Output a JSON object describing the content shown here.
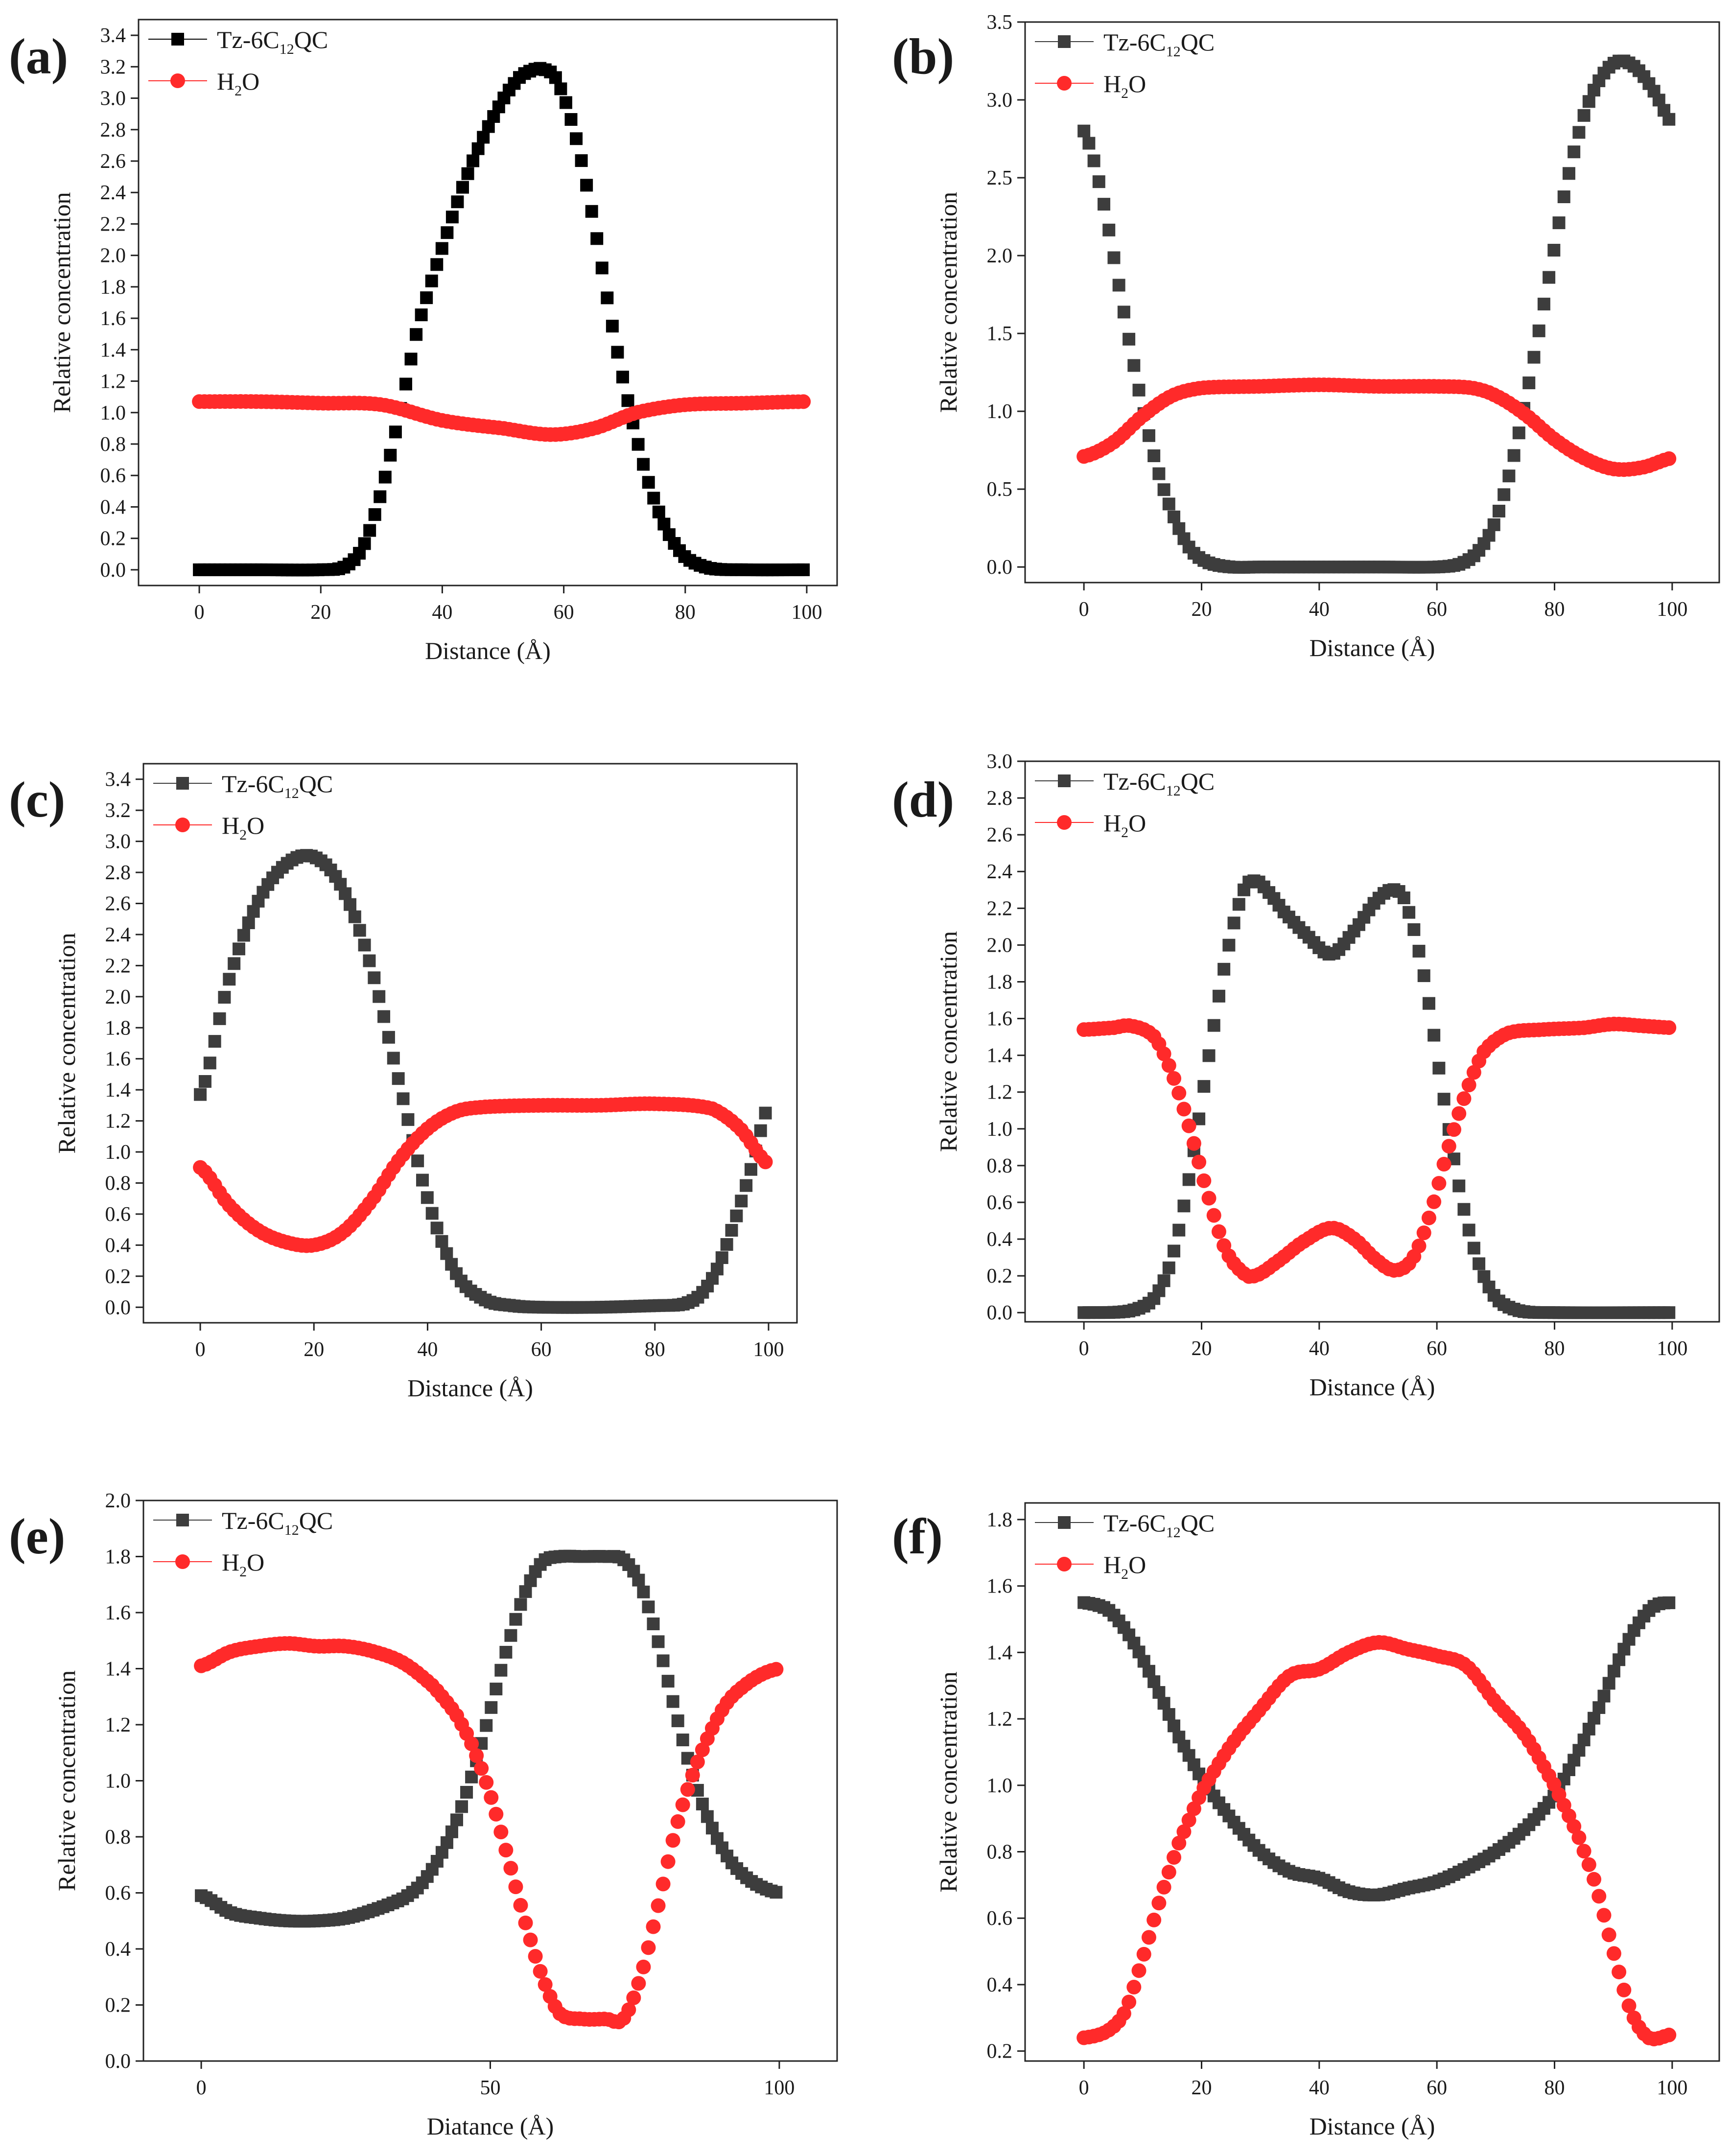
{
  "figure": {
    "series_colors": {
      "Tz-6C12QC": "#3d3d3d",
      "H2O": "#ff2a2a"
    },
    "series_colors_panel_a": {
      "Tz-6C12QC": "#000000",
      "H2O": "#ff2a2a"
    }
  },
  "chart_data": [
    {
      "panel": "(a)",
      "type": "scatter",
      "xlabel": "Distance (Å)",
      "ylabel": "Relative concentration",
      "xlim": [
        -10,
        105
      ],
      "ylim": [
        -0.1,
        3.5
      ],
      "xticks": [
        0,
        20,
        40,
        60,
        80,
        100
      ],
      "yticks": [
        0.0,
        0.2,
        0.4,
        0.6,
        0.8,
        1.0,
        1.2,
        1.4,
        1.6,
        1.8,
        2.0,
        2.2,
        2.4,
        2.6,
        2.8,
        3.0,
        3.2,
        3.4
      ],
      "ytick_decimals": 1,
      "legend_position": "top-left",
      "series": [
        {
          "name": "Tz-6C12QC",
          "marker": "square",
          "x": [
            0,
            10,
            20,
            24,
            27,
            30,
            33,
            36,
            40,
            44,
            48,
            52,
            55,
            57,
            59,
            62,
            65,
            68,
            71,
            74,
            77,
            80,
            84,
            90,
            100
          ],
          "y": [
            0.0,
            0.0,
            0.0,
            0.02,
            0.15,
            0.5,
            1.0,
            1.55,
            2.05,
            2.5,
            2.85,
            3.1,
            3.18,
            3.18,
            3.1,
            2.75,
            2.2,
            1.55,
            1.0,
            0.55,
            0.25,
            0.08,
            0.01,
            0.0,
            0.0
          ]
        },
        {
          "name": "H2O",
          "marker": "circle",
          "x": [
            0,
            10,
            20,
            30,
            40,
            50,
            58,
            65,
            72,
            80,
            90,
            100
          ],
          "y": [
            1.07,
            1.07,
            1.06,
            1.05,
            0.95,
            0.9,
            0.86,
            0.9,
            1.0,
            1.05,
            1.06,
            1.07
          ]
        }
      ],
      "legend": [
        {
          "series": "Tz-6C12QC",
          "base": "Tz-6C",
          "sub": "12",
          "tail": "QC"
        },
        {
          "series": "H2O",
          "base": "H",
          "sub": "2",
          "tail": "O"
        }
      ]
    },
    {
      "panel": "(b)",
      "type": "scatter",
      "xlabel": "Distance (Å)",
      "ylabel": "Relative concentration",
      "xlim": [
        -10,
        108
      ],
      "ylim": [
        -0.1,
        3.5
      ],
      "xticks": [
        0,
        20,
        40,
        60,
        80,
        100
      ],
      "yticks": [
        0.0,
        0.5,
        1.0,
        1.5,
        2.0,
        2.5,
        3.0,
        3.5
      ],
      "ytick_decimals": 1,
      "legend_position": "top-left",
      "series": [
        {
          "name": "Tz-6C12QC",
          "marker": "square",
          "x": [
            0,
            3,
            6,
            9,
            12,
            15,
            18,
            21,
            25,
            30,
            40,
            50,
            60,
            64,
            67,
            70,
            73,
            76,
            79,
            82,
            85,
            88,
            91,
            94,
            97,
            100
          ],
          "y": [
            2.8,
            2.4,
            1.8,
            1.2,
            0.7,
            0.35,
            0.12,
            0.03,
            0.0,
            0.0,
            0.0,
            0.0,
            0.0,
            0.02,
            0.1,
            0.3,
            0.7,
            1.25,
            1.85,
            2.45,
            2.9,
            3.15,
            3.25,
            3.2,
            3.05,
            2.85
          ]
        },
        {
          "name": "H2O",
          "marker": "circle",
          "x": [
            0,
            5,
            10,
            15,
            20,
            30,
            40,
            50,
            60,
            66,
            70,
            75,
            80,
            85,
            90,
            95,
            100
          ],
          "y": [
            0.71,
            0.8,
            0.97,
            1.1,
            1.15,
            1.16,
            1.17,
            1.16,
            1.16,
            1.15,
            1.1,
            0.98,
            0.82,
            0.7,
            0.63,
            0.64,
            0.7
          ]
        }
      ],
      "legend": [
        {
          "series": "Tz-6C12QC",
          "base": "Tz-6C",
          "sub": "12",
          "tail": "QC"
        },
        {
          "series": "H2O",
          "base": "H",
          "sub": "2",
          "tail": "O"
        }
      ]
    },
    {
      "panel": "(c)",
      "type": "scatter",
      "xlabel": "Distance (Å)",
      "ylabel": "Relative concentration",
      "xlim": [
        -10,
        105
      ],
      "ylim": [
        -0.1,
        3.5
      ],
      "xticks": [
        0,
        20,
        40,
        60,
        80,
        100
      ],
      "yticks": [
        0.0,
        0.2,
        0.4,
        0.6,
        0.8,
        1.0,
        1.2,
        1.4,
        1.6,
        1.8,
        2.0,
        2.2,
        2.4,
        2.6,
        2.8,
        3.0,
        3.2,
        3.4
      ],
      "ytick_decimals": 1,
      "legend_position": "top-left",
      "series": [
        {
          "name": "Tz-6C12QC",
          "marker": "square",
          "x": [
            0,
            5,
            10,
            15,
            20,
            25,
            30,
            35,
            40,
            45,
            50,
            55,
            60,
            70,
            80,
            85,
            88,
            91,
            94,
            97,
            100
          ],
          "y": [
            1.37,
            2.1,
            2.6,
            2.85,
            2.9,
            2.7,
            2.2,
            1.45,
            0.7,
            0.22,
            0.05,
            0.01,
            0.0,
            0.0,
            0.01,
            0.02,
            0.08,
            0.25,
            0.55,
            0.9,
            1.3
          ]
        },
        {
          "name": "H2O",
          "marker": "circle",
          "x": [
            0,
            5,
            10,
            15,
            20,
            25,
            30,
            35,
            40,
            45,
            50,
            60,
            70,
            80,
            90,
            95,
            100
          ],
          "y": [
            0.9,
            0.66,
            0.5,
            0.42,
            0.4,
            0.48,
            0.68,
            0.95,
            1.15,
            1.26,
            1.29,
            1.3,
            1.3,
            1.31,
            1.28,
            1.15,
            0.92
          ]
        }
      ],
      "legend": [
        {
          "series": "Tz-6C12QC",
          "base": "Tz-6C",
          "sub": "12",
          "tail": "QC"
        },
        {
          "series": "H2O",
          "base": "H",
          "sub": "2",
          "tail": "O"
        }
      ]
    },
    {
      "panel": "(d)",
      "type": "scatter",
      "xlabel": "Distance (Å)",
      "ylabel": "Relative concentration",
      "xlim": [
        -10,
        108
      ],
      "ylim": [
        -0.05,
        3.0
      ],
      "xticks": [
        0,
        20,
        40,
        60,
        80,
        100
      ],
      "yticks": [
        0.0,
        0.2,
        0.4,
        0.6,
        0.8,
        1.0,
        1.2,
        1.4,
        1.6,
        1.8,
        2.0,
        2.2,
        2.4,
        2.6,
        2.8,
        3.0
      ],
      "ytick_decimals": 1,
      "legend_position": "top-left",
      "series": [
        {
          "name": "Tz-6C12QC",
          "marker": "square",
          "x": [
            0,
            8,
            12,
            15,
            18,
            21,
            24,
            27,
            29,
            31,
            34,
            38,
            42,
            46,
            50,
            53,
            55,
            58,
            61,
            64,
            67,
            70,
            74,
            80,
            100
          ],
          "y": [
            0.0,
            0.01,
            0.08,
            0.3,
            0.75,
            1.35,
            1.9,
            2.28,
            2.35,
            2.3,
            2.18,
            2.05,
            1.95,
            2.08,
            2.25,
            2.3,
            2.2,
            1.8,
            1.2,
            0.65,
            0.28,
            0.08,
            0.01,
            0.0,
            0.0
          ]
        },
        {
          "name": "H2O",
          "marker": "circle",
          "x": [
            0,
            5,
            8,
            12,
            15,
            18,
            21,
            24,
            27,
            29,
            33,
            37,
            42,
            46,
            50,
            53,
            56,
            59,
            62,
            65,
            68,
            72,
            78,
            85,
            90,
            95,
            100
          ],
          "y": [
            1.54,
            1.55,
            1.56,
            1.5,
            1.3,
            1.0,
            0.65,
            0.35,
            0.22,
            0.2,
            0.28,
            0.38,
            0.46,
            0.4,
            0.28,
            0.23,
            0.3,
            0.55,
            0.9,
            1.2,
            1.42,
            1.52,
            1.54,
            1.55,
            1.57,
            1.56,
            1.55
          ]
        }
      ],
      "legend": [
        {
          "series": "Tz-6C12QC",
          "base": "Tz-6C",
          "sub": "12",
          "tail": "QC"
        },
        {
          "series": "H2O",
          "base": "H",
          "sub": "2",
          "tail": "O"
        }
      ]
    },
    {
      "panel": "(e)",
      "type": "scatter",
      "xlabel": "Diatance (Å)",
      "ylabel": "Relative concentration",
      "xlim": [
        -10,
        110
      ],
      "ylim": [
        0.0,
        2.0
      ],
      "xticks": [
        0,
        50,
        100
      ],
      "yticks": [
        0.0,
        0.2,
        0.4,
        0.6,
        0.8,
        1.0,
        1.2,
        1.4,
        1.6,
        1.8,
        2.0
      ],
      "ytick_decimals": 1,
      "legend_position": "top-left",
      "series": [
        {
          "name": "Tz-6C12QC",
          "marker": "square",
          "x": [
            0,
            5,
            10,
            15,
            20,
            25,
            30,
            35,
            38,
            41,
            44,
            47,
            50,
            53,
            56,
            59,
            62,
            66,
            70,
            73,
            76,
            79,
            82,
            85,
            88,
            91,
            94,
            97,
            100
          ],
          "y": [
            0.59,
            0.53,
            0.51,
            0.5,
            0.5,
            0.51,
            0.54,
            0.58,
            0.63,
            0.72,
            0.85,
            1.03,
            1.25,
            1.48,
            1.67,
            1.78,
            1.8,
            1.8,
            1.8,
            1.79,
            1.7,
            1.5,
            1.25,
            1.02,
            0.85,
            0.73,
            0.66,
            0.62,
            0.6
          ]
        },
        {
          "name": "H2O",
          "marker": "circle",
          "x": [
            0,
            5,
            10,
            15,
            20,
            25,
            30,
            35,
            40,
            44,
            47,
            50,
            53,
            56,
            59,
            62,
            66,
            70,
            73,
            76,
            79,
            82,
            85,
            88,
            91,
            94,
            97,
            100
          ],
          "y": [
            1.41,
            1.46,
            1.48,
            1.49,
            1.48,
            1.48,
            1.46,
            1.42,
            1.34,
            1.24,
            1.12,
            0.95,
            0.73,
            0.5,
            0.3,
            0.17,
            0.15,
            0.15,
            0.15,
            0.3,
            0.55,
            0.82,
            1.02,
            1.17,
            1.28,
            1.34,
            1.38,
            1.4
          ]
        }
      ],
      "legend": [
        {
          "series": "Tz-6C12QC",
          "base": "Tz-6C",
          "sub": "12",
          "tail": "QC"
        },
        {
          "series": "H2O",
          "base": "H",
          "sub": "2",
          "tail": "O"
        }
      ]
    },
    {
      "panel": "(f)",
      "type": "scatter",
      "xlabel": "Distance (Å)",
      "ylabel": "Relative concentration",
      "xlim": [
        -10,
        108
      ],
      "ylim": [
        0.17,
        1.85
      ],
      "xticks": [
        0,
        20,
        40,
        60,
        80,
        100
      ],
      "yticks": [
        0.2,
        0.4,
        0.6,
        0.8,
        1.0,
        1.2,
        1.4,
        1.6,
        1.8
      ],
      "ytick_decimals": 1,
      "legend_position": "top-left",
      "series": [
        {
          "name": "Tz-6C12QC",
          "marker": "square",
          "x": [
            0,
            4,
            7,
            10,
            13,
            16,
            20,
            25,
            30,
            35,
            40,
            45,
            50,
            55,
            60,
            65,
            70,
            75,
            80,
            84,
            88,
            91,
            94,
            97,
            100
          ],
          "y": [
            1.55,
            1.53,
            1.47,
            1.38,
            1.27,
            1.15,
            1.02,
            0.9,
            0.8,
            0.74,
            0.72,
            0.68,
            0.67,
            0.69,
            0.71,
            0.75,
            0.8,
            0.87,
            0.97,
            1.1,
            1.25,
            1.38,
            1.48,
            1.54,
            1.55
          ]
        },
        {
          "name": "H2O",
          "marker": "circle",
          "x": [
            0,
            4,
            7,
            10,
            13,
            16,
            20,
            25,
            30,
            35,
            40,
            45,
            50,
            55,
            60,
            65,
            70,
            75,
            80,
            84,
            87,
            90,
            93,
            96,
            100
          ],
          "y": [
            0.24,
            0.26,
            0.32,
            0.48,
            0.66,
            0.82,
            0.98,
            1.12,
            1.23,
            1.33,
            1.35,
            1.4,
            1.43,
            1.41,
            1.39,
            1.36,
            1.25,
            1.15,
            1.0,
            0.85,
            0.7,
            0.5,
            0.32,
            0.24,
            0.25
          ]
        }
      ],
      "legend": [
        {
          "series": "Tz-6C12QC",
          "base": "Tz-6C",
          "sub": "12",
          "tail": "QC"
        },
        {
          "series": "H2O",
          "base": "H",
          "sub": "2",
          "tail": "O"
        }
      ]
    }
  ]
}
